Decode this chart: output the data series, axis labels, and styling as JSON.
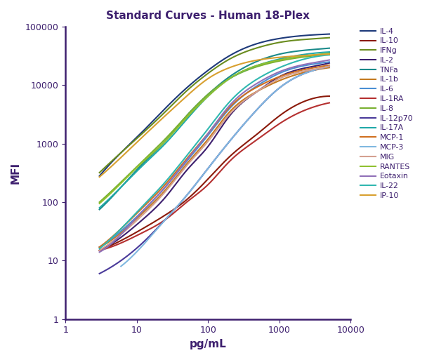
{
  "title": "Standard Curves - Human 18-Plex",
  "xlabel": "pg/mL",
  "ylabel": "MFI",
  "title_color": "#3d1f6e",
  "axis_color": "#3d1f6e",
  "xlim": [
    1,
    10000
  ],
  "ylim": [
    1,
    100000
  ],
  "series": [
    {
      "label": "IL-4",
      "color": "#1e3a7a",
      "x": [
        3,
        6,
        12,
        25,
        50,
        100,
        200,
        500,
        1000,
        2000,
        5000
      ],
      "y": [
        280,
        700,
        1600,
        4000,
        9000,
        18000,
        32000,
        52000,
        63000,
        70000,
        75000
      ]
    },
    {
      "label": "IL-10",
      "color": "#8b1a0a",
      "x": [
        3,
        6,
        12,
        25,
        50,
        100,
        200,
        500,
        1000,
        2000,
        5000
      ],
      "y": [
        15,
        22,
        35,
        60,
        110,
        250,
        600,
        1500,
        3000,
        5000,
        6500
      ]
    },
    {
      "label": "IFNg",
      "color": "#6a8c1f",
      "x": [
        3,
        6,
        12,
        25,
        50,
        100,
        200,
        500,
        1000,
        2000,
        5000
      ],
      "y": [
        320,
        700,
        1500,
        3500,
        8000,
        16000,
        28000,
        44000,
        54000,
        60000,
        65000
      ]
    },
    {
      "label": "IL-2",
      "color": "#3d1f6e",
      "x": [
        3,
        6,
        12,
        25,
        50,
        100,
        200,
        500,
        1000,
        2000,
        5000
      ],
      "y": [
        15,
        25,
        50,
        120,
        350,
        900,
        3000,
        8000,
        14000,
        19000,
        24000
      ]
    },
    {
      "label": "TNFa",
      "color": "#1a8a8a",
      "x": [
        3,
        6,
        12,
        25,
        50,
        100,
        200,
        500,
        1000,
        2000,
        5000
      ],
      "y": [
        75,
        180,
        450,
        1100,
        3000,
        7000,
        14000,
        26000,
        34000,
        39000,
        43000
      ]
    },
    {
      "label": "IL-1b",
      "color": "#c47a20",
      "x": [
        3,
        6,
        12,
        25,
        50,
        100,
        200,
        500,
        1000,
        2000,
        5000
      ],
      "y": [
        17,
        30,
        65,
        160,
        450,
        1200,
        3500,
        8000,
        12000,
        16000,
        20000
      ]
    },
    {
      "label": "IL-6",
      "color": "#4a8fd4",
      "x": [
        3,
        6,
        12,
        25,
        50,
        100,
        200,
        500,
        1000,
        2000,
        5000
      ],
      "y": [
        17,
        32,
        70,
        180,
        500,
        1400,
        4000,
        10000,
        16000,
        21000,
        25000
      ]
    },
    {
      "label": "IL-1RA",
      "color": "#b53030",
      "x": [
        3,
        6,
        12,
        25,
        50,
        100,
        200,
        500,
        1000,
        2000,
        5000
      ],
      "y": [
        15,
        20,
        30,
        50,
        100,
        200,
        500,
        1200,
        2200,
        3500,
        5000
      ]
    },
    {
      "label": "IL-8",
      "color": "#7ab030",
      "x": [
        3,
        6,
        12,
        25,
        50,
        100,
        200,
        500,
        1000,
        2000,
        5000
      ],
      "y": [
        100,
        220,
        500,
        1200,
        3000,
        7000,
        13000,
        21000,
        26000,
        30000,
        34000
      ]
    },
    {
      "label": "IL-12p70",
      "color": "#4a3a9a",
      "x": [
        3,
        6,
        12,
        25,
        50,
        100,
        200,
        500,
        1000,
        2000,
        5000
      ],
      "y": [
        6,
        10,
        20,
        50,
        130,
        380,
        1100,
        4000,
        9000,
        15000,
        21000
      ]
    },
    {
      "label": "IL-17A",
      "color": "#20a8a8",
      "x": [
        3,
        6,
        12,
        25,
        50,
        100,
        200,
        500,
        1000,
        2000,
        5000
      ],
      "y": [
        80,
        180,
        420,
        1000,
        2600,
        6500,
        13000,
        22000,
        28000,
        33000,
        37000
      ]
    },
    {
      "label": "MCP-1",
      "color": "#d07020",
      "x": [
        3,
        6,
        12,
        25,
        50,
        100,
        200,
        500,
        1000,
        2000,
        5000
      ],
      "y": [
        17,
        35,
        80,
        200,
        550,
        1500,
        4200,
        9500,
        14000,
        18000,
        22000
      ]
    },
    {
      "label": "MCP-3",
      "color": "#80b8e0",
      "x": [
        6,
        12,
        25,
        50,
        100,
        200,
        500,
        1000,
        2000,
        5000
      ],
      "y": [
        8,
        18,
        50,
        130,
        380,
        1100,
        4000,
        9000,
        15000,
        21000
      ]
    },
    {
      "label": "MIG",
      "color": "#d4a090",
      "x": [
        3,
        6,
        12,
        25,
        50,
        100,
        200,
        500,
        1000,
        2000,
        5000
      ],
      "y": [
        15,
        28,
        60,
        150,
        420,
        1100,
        3200,
        8000,
        13000,
        17000,
        21000
      ]
    },
    {
      "label": "RANTES",
      "color": "#90c030",
      "x": [
        3,
        6,
        12,
        25,
        50,
        100,
        200,
        500,
        1000,
        2000,
        5000
      ],
      "y": [
        95,
        210,
        480,
        1100,
        2800,
        6500,
        13000,
        22000,
        27000,
        31000,
        35000
      ]
    },
    {
      "label": "Eotaxin",
      "color": "#9070b8",
      "x": [
        3,
        6,
        12,
        25,
        50,
        100,
        200,
        500,
        1000,
        2000,
        5000
      ],
      "y": [
        14,
        28,
        70,
        180,
        520,
        1500,
        4500,
        11000,
        17000,
        22000,
        27000
      ]
    },
    {
      "label": "IL-22",
      "color": "#30b8b0",
      "x": [
        3,
        6,
        12,
        25,
        50,
        100,
        200,
        500,
        1000,
        2000,
        5000
      ],
      "y": [
        16,
        35,
        85,
        220,
        620,
        1800,
        5200,
        13000,
        20000,
        27000,
        33000
      ]
    },
    {
      "label": "IP-10",
      "color": "#d8a030",
      "x": [
        3,
        6,
        12,
        25,
        50,
        100,
        200,
        500,
        1000,
        2000,
        5000
      ],
      "y": [
        270,
        580,
        1300,
        3000,
        6500,
        13000,
        20000,
        27000,
        30000,
        32000,
        34000
      ]
    }
  ]
}
